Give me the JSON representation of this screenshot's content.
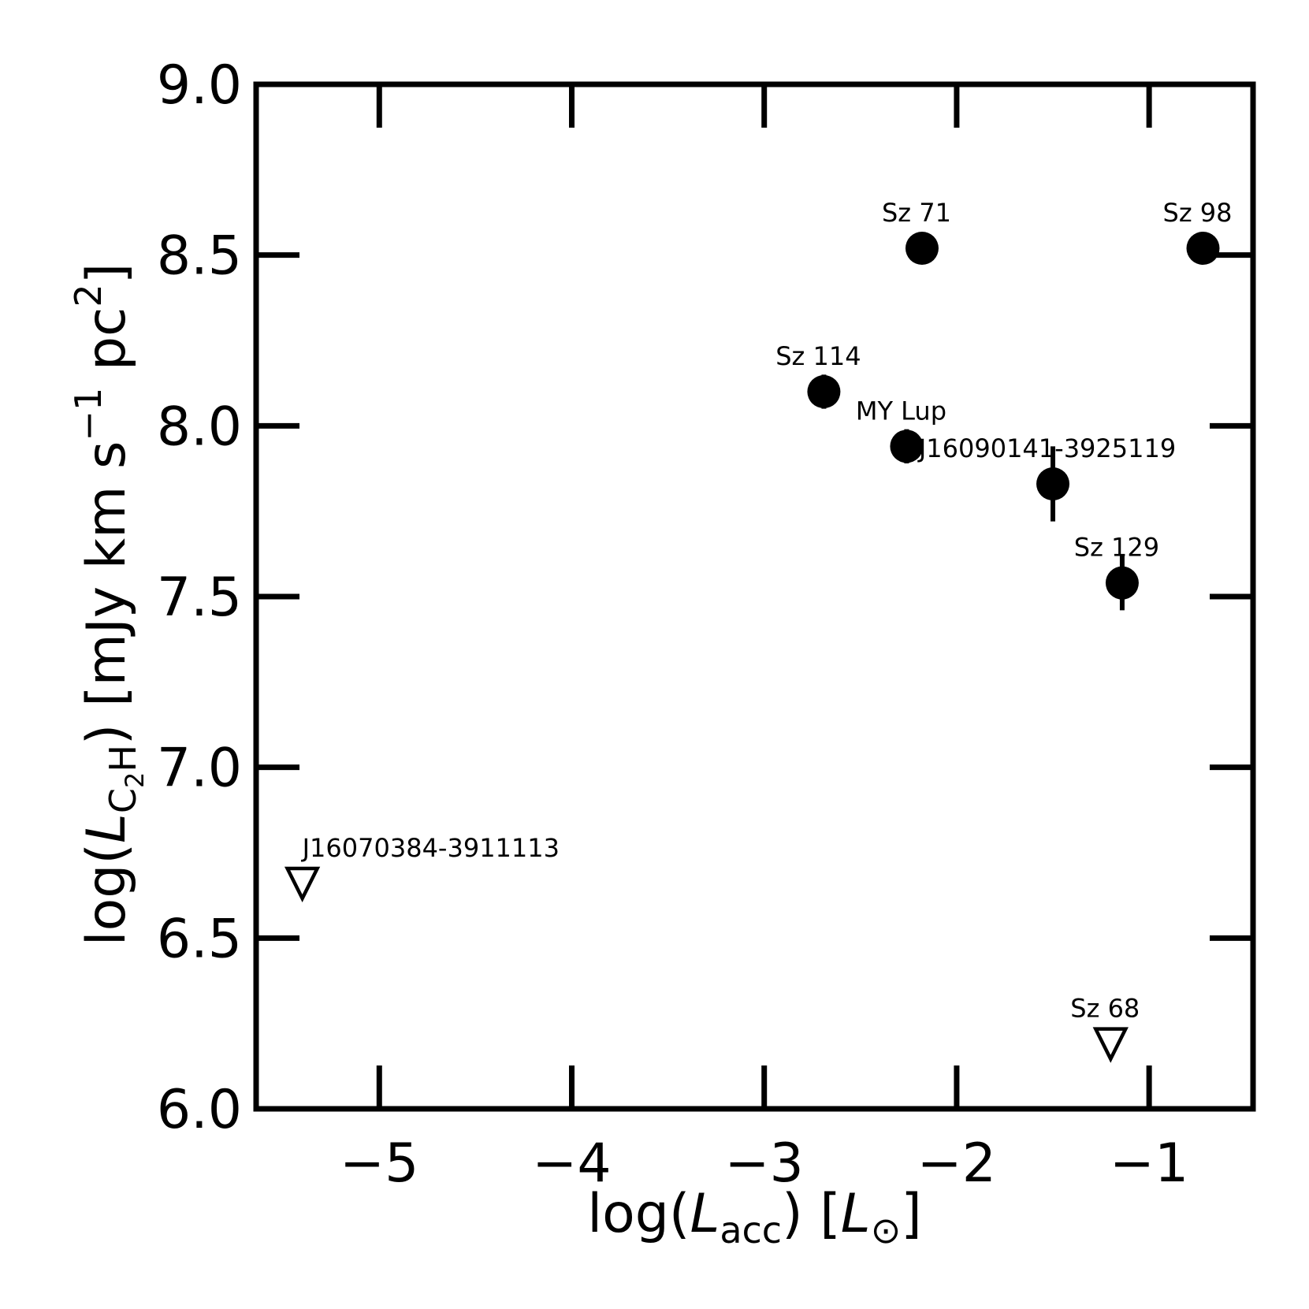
{
  "chart_data": {
    "type": "scatter",
    "xlabel": {
      "pre": "log(",
      "var": "L",
      "sub": "acc",
      "post": ") [",
      "var2": "L",
      "sub2": "⊙",
      "close": "]"
    },
    "ylabel": {
      "pre": "log(",
      "var": "L",
      "sub": "C",
      "subsub": "2",
      "sub_tail": "H",
      "post": ") [mJy km s",
      "sup1": "−1",
      "mid": " pc",
      "sup2": "2",
      "close": "]"
    },
    "xlim": [
      -5.64,
      -0.46
    ],
    "ylim": [
      6.0,
      9.0
    ],
    "xticks": [
      -5,
      -4,
      -3,
      -2,
      -1
    ],
    "xtick_labels": [
      "−5",
      "−4",
      "−3",
      "−2",
      "−1"
    ],
    "yticks": [
      6.0,
      6.5,
      7.0,
      7.5,
      8.0,
      8.5,
      9.0
    ],
    "ytick_labels": [
      "6.0",
      "6.5",
      "7.0",
      "7.5",
      "8.0",
      "8.5",
      "9.0"
    ],
    "grid": false,
    "points": [
      {
        "name": "Sz 71",
        "x": -2.18,
        "y": 8.52,
        "yerr": 0.0,
        "marker": "filled-circle"
      },
      {
        "name": "Sz 98",
        "x": -0.72,
        "y": 8.52,
        "yerr": 0.0,
        "marker": "filled-circle"
      },
      {
        "name": "Sz 114",
        "x": -2.69,
        "y": 8.1,
        "yerr": 0.05,
        "marker": "filled-circle"
      },
      {
        "name": "MY Lup",
        "x": -2.26,
        "y": 7.94,
        "yerr": 0.05,
        "marker": "filled-circle"
      },
      {
        "name": "J16090141-3925119",
        "x": -1.5,
        "y": 7.83,
        "yerr": 0.11,
        "marker": "filled-circle"
      },
      {
        "name": "Sz 129",
        "x": -1.14,
        "y": 7.54,
        "yerr": 0.08,
        "marker": "filled-circle"
      },
      {
        "name": "J16070384-3911113",
        "x": -5.4,
        "y": 6.66,
        "yerr": 0.0,
        "marker": "open-triangle-down"
      },
      {
        "name": "Sz 68",
        "x": -1.2,
        "y": 6.19,
        "yerr": 0.0,
        "marker": "open-triangle-down"
      }
    ]
  }
}
